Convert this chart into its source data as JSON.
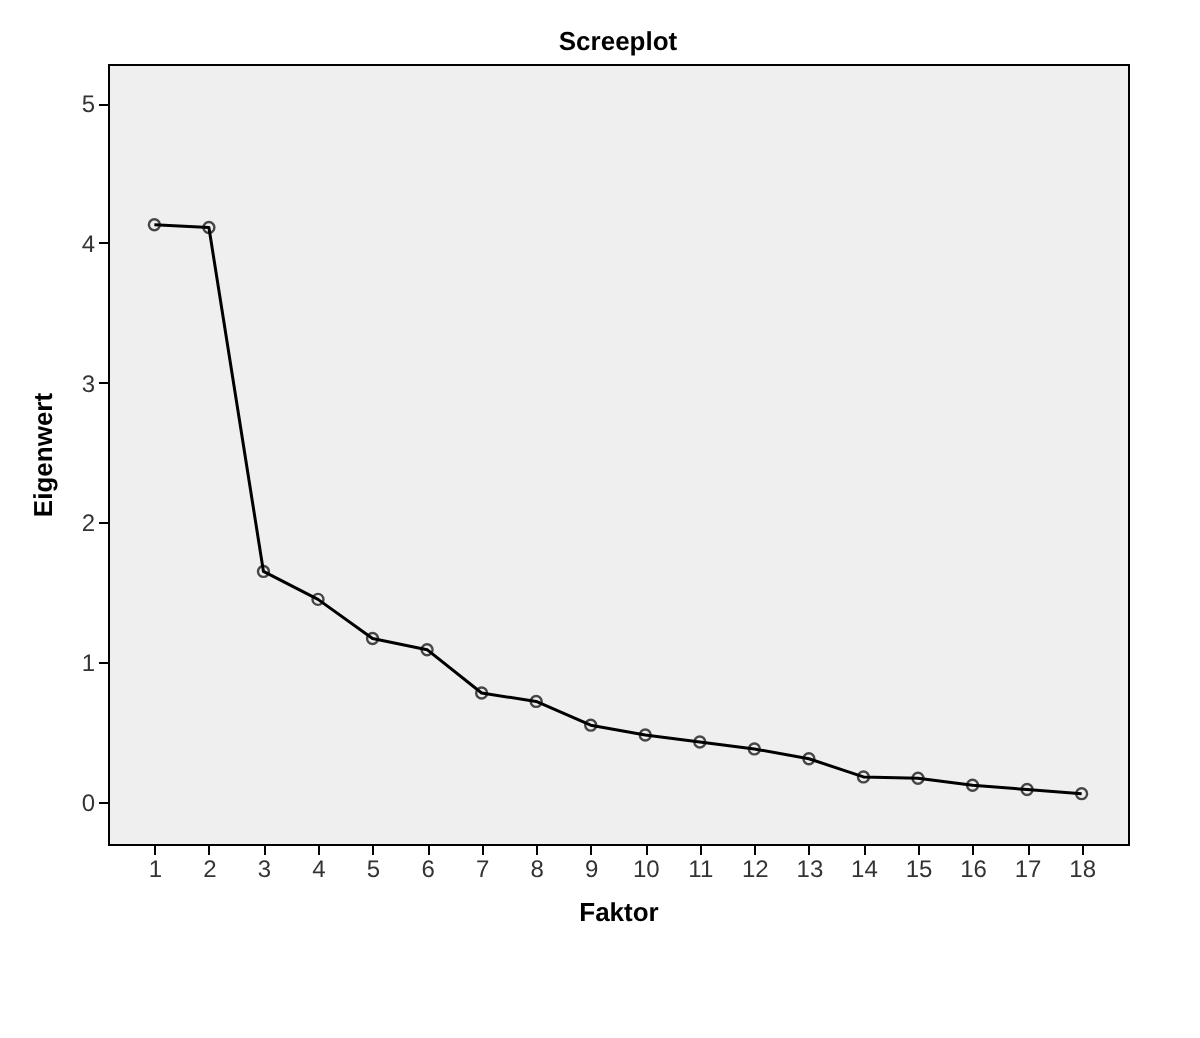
{
  "chart_data": {
    "type": "line",
    "title": "Screeplot",
    "xlabel": "Faktor",
    "ylabel": "Eigenwert",
    "x": [
      1,
      2,
      3,
      4,
      5,
      6,
      7,
      8,
      9,
      10,
      11,
      12,
      13,
      14,
      15,
      16,
      17,
      18
    ],
    "series": [
      {
        "color": "#000000",
        "values": [
          4.13,
          4.11,
          1.65,
          1.45,
          1.17,
          1.09,
          0.78,
          0.72,
          0.55,
          0.48,
          0.43,
          0.38,
          0.31,
          0.18,
          0.17,
          0.12,
          0.09,
          0.06
        ]
      }
    ],
    "xlim": [
      0.15,
      18.85
    ],
    "xticks": [
      1,
      2,
      3,
      4,
      5,
      6,
      7,
      8,
      9,
      10,
      11,
      12,
      13,
      14,
      15,
      16,
      17,
      18
    ],
    "ylim": [
      -0.3,
      5.28
    ],
    "yticks": [
      0,
      1,
      2,
      3,
      4,
      5
    ],
    "grid": false,
    "legend": false,
    "marker": "circle",
    "line_style": "solid"
  }
}
